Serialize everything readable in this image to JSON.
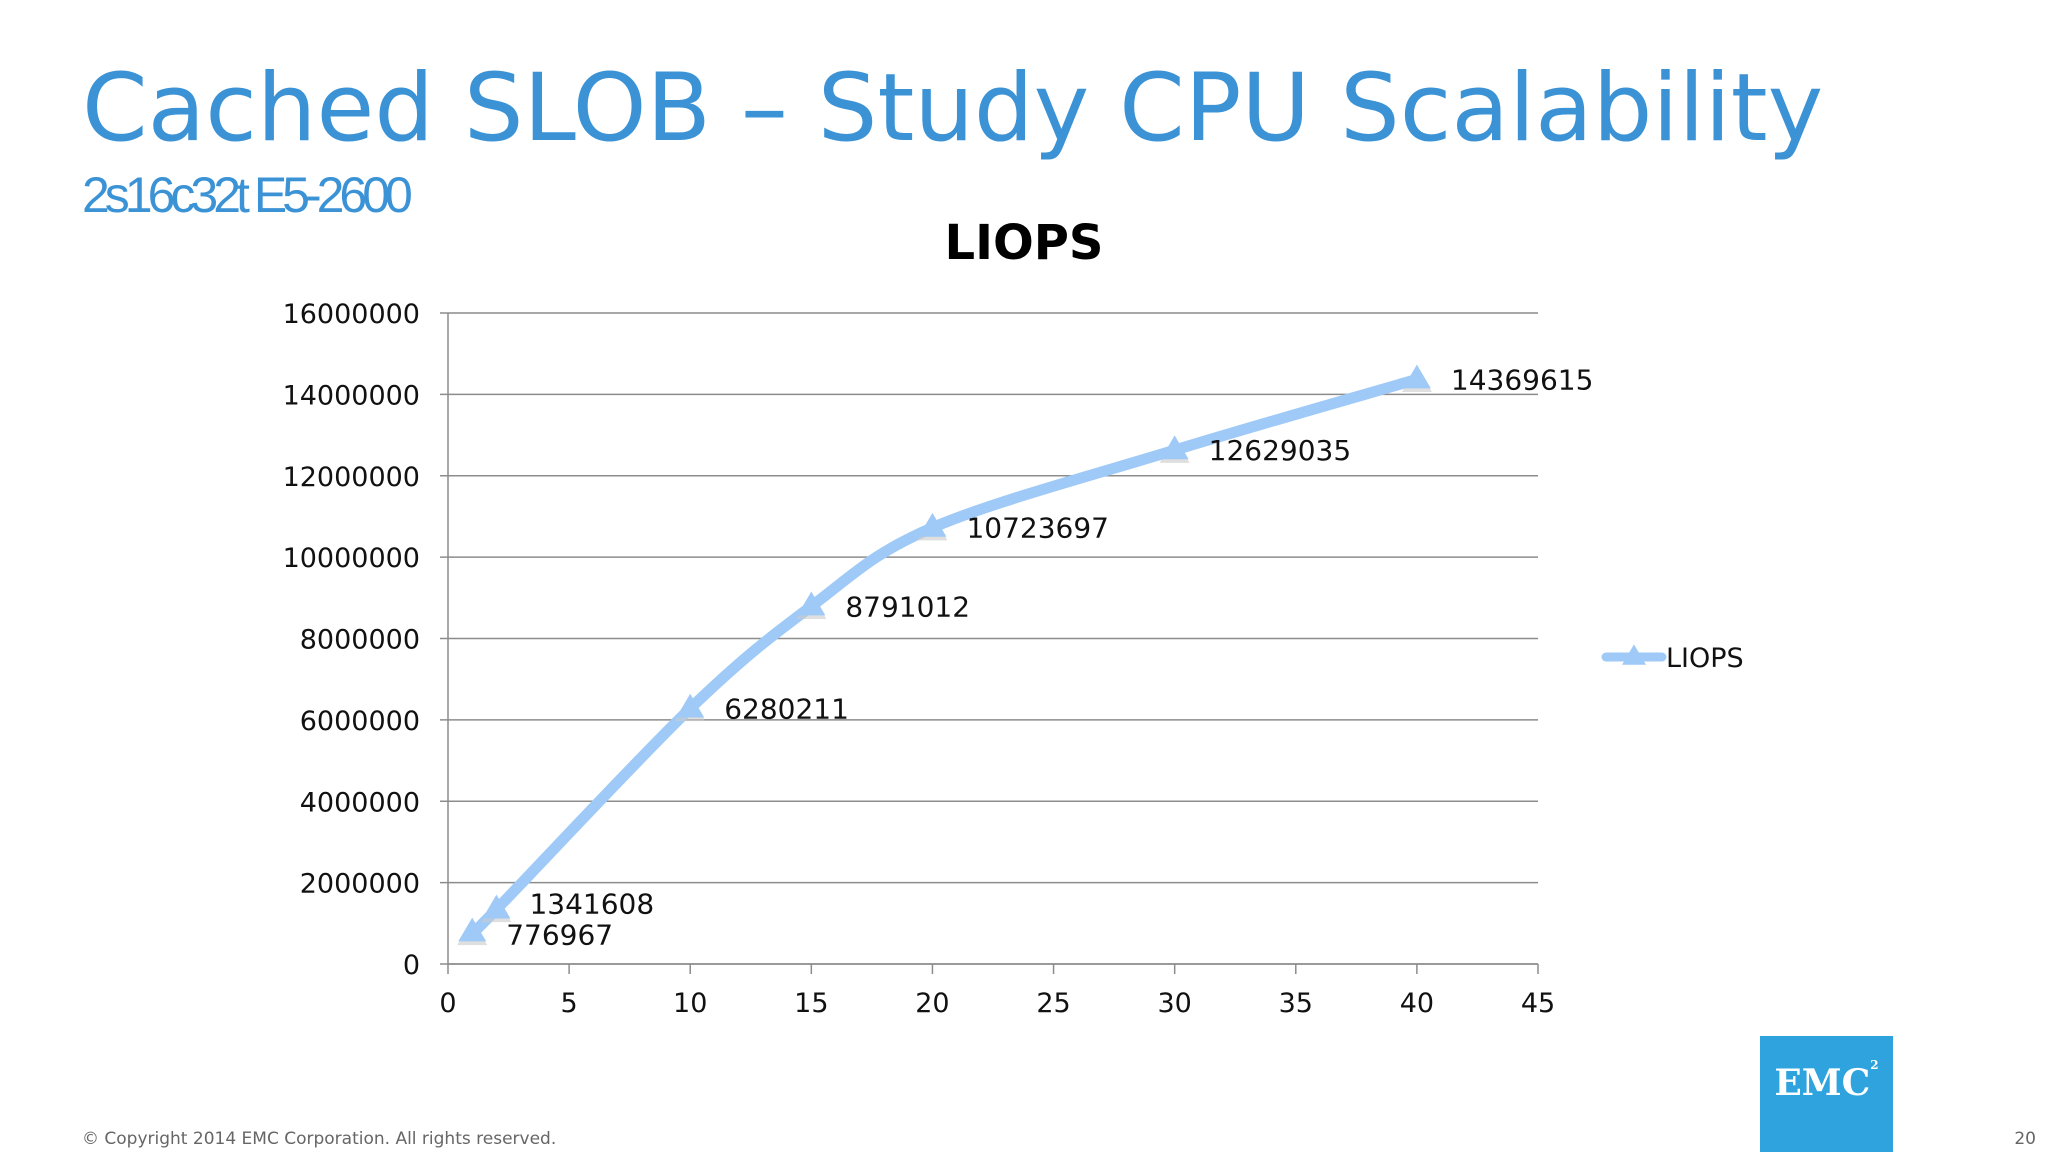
{
  "slide": {
    "title": "Cached SLOB – Study CPU Scalability",
    "subtitle": "2s16c32t E5-2600",
    "copyright": "© Copyright 2014 EMC Corporation. All rights reserved.",
    "page_number": "20",
    "logo_text": "EMC",
    "logo_superscript": "2"
  },
  "colors": {
    "title": "#3b93d6",
    "series_line": "#9fcaf7",
    "gridline": "#8c8c8c",
    "logo_background": "#2ea3dd"
  },
  "chart_data": {
    "type": "scatter",
    "title": "LIOPS",
    "xlabel": "",
    "ylabel": "",
    "xlim": [
      0,
      45
    ],
    "ylim": [
      0,
      16000000
    ],
    "x_ticks": [
      0,
      5,
      10,
      15,
      20,
      25,
      30,
      35,
      40,
      45
    ],
    "y_ticks": [
      0,
      2000000,
      4000000,
      6000000,
      8000000,
      10000000,
      12000000,
      14000000,
      16000000
    ],
    "grid": true,
    "smoothed_line": true,
    "marker": "triangle",
    "legend_position": "right",
    "series": [
      {
        "name": "LIOPS",
        "color": "#9fcaf7",
        "x": [
          1,
          2,
          10,
          15,
          20,
          30,
          40
        ],
        "y": [
          776967,
          1341608,
          6280211,
          8791012,
          10723697,
          12629035,
          14369615
        ],
        "data_labels": [
          "776967",
          "1341608",
          "6280211",
          "8791012",
          "10723697",
          "12629035",
          "14369615"
        ]
      }
    ]
  }
}
